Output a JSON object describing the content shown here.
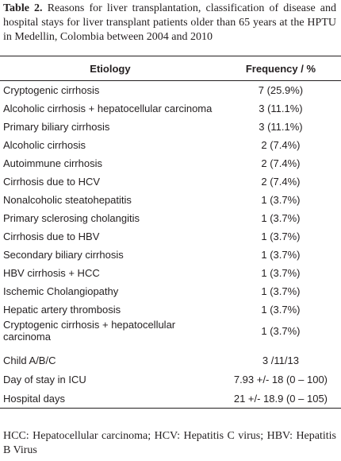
{
  "caption": {
    "label": "Table 2.",
    "text": "Reasons for liver transplantation, classification of disease and hospital stays for liver transplant patients older than 65 years at the HPTU in Medellin, Colombia between 2004 and 2010"
  },
  "table": {
    "header": [
      "Etiology",
      "Frequency / %"
    ],
    "rows": [
      [
        "Cryptogenic cirrhosis",
        "7 (25.9%)"
      ],
      [
        "Alcoholic cirrhosis + hepatocellular carcinoma",
        "3 (11.1%)"
      ],
      [
        "Primary biliary cirrhosis",
        "3 (11.1%)"
      ],
      [
        "Alcoholic cirrhosis",
        "2 (7.4%)"
      ],
      [
        "Autoimmune cirrhosis",
        "2 (7.4%)"
      ],
      [
        "Cirrhosis due to  HCV",
        "2 (7.4%)"
      ],
      [
        "Nonalcoholic steatohepatitis",
        "1 (3.7%)"
      ],
      [
        "Primary sclerosing cholangitis",
        "1 (3.7%)"
      ],
      [
        "Cirrhosis due to  HBV",
        "1 (3.7%)"
      ],
      [
        "Secondary biliary cirrhosis",
        "1 (3.7%)"
      ],
      [
        "HBV cirrhosis + HCC",
        "1 (3.7%)"
      ],
      [
        "Ischemic Cholangiopathy",
        "1 (3.7%)"
      ],
      [
        "Hepatic artery thrombosis",
        "1 (3.7%)"
      ],
      [
        "Cryptogenic cirrhosis + hepatocellular carcinoma",
        "1 (3.7%)"
      ]
    ],
    "summary_rows": [
      [
        "Child A/B/C",
        "3 /11/13"
      ],
      [
        "Day of stay in ICU",
        "7.93 +/- 18 (0 – 100)"
      ],
      [
        "Hospital days",
        "21 +/- 18.9 (0 – 105)"
      ]
    ]
  },
  "footnote": "HCC: Hepatocellular carcinoma; HCV: Hepatitis C virus; HBV: Hepatitis B Virus"
}
